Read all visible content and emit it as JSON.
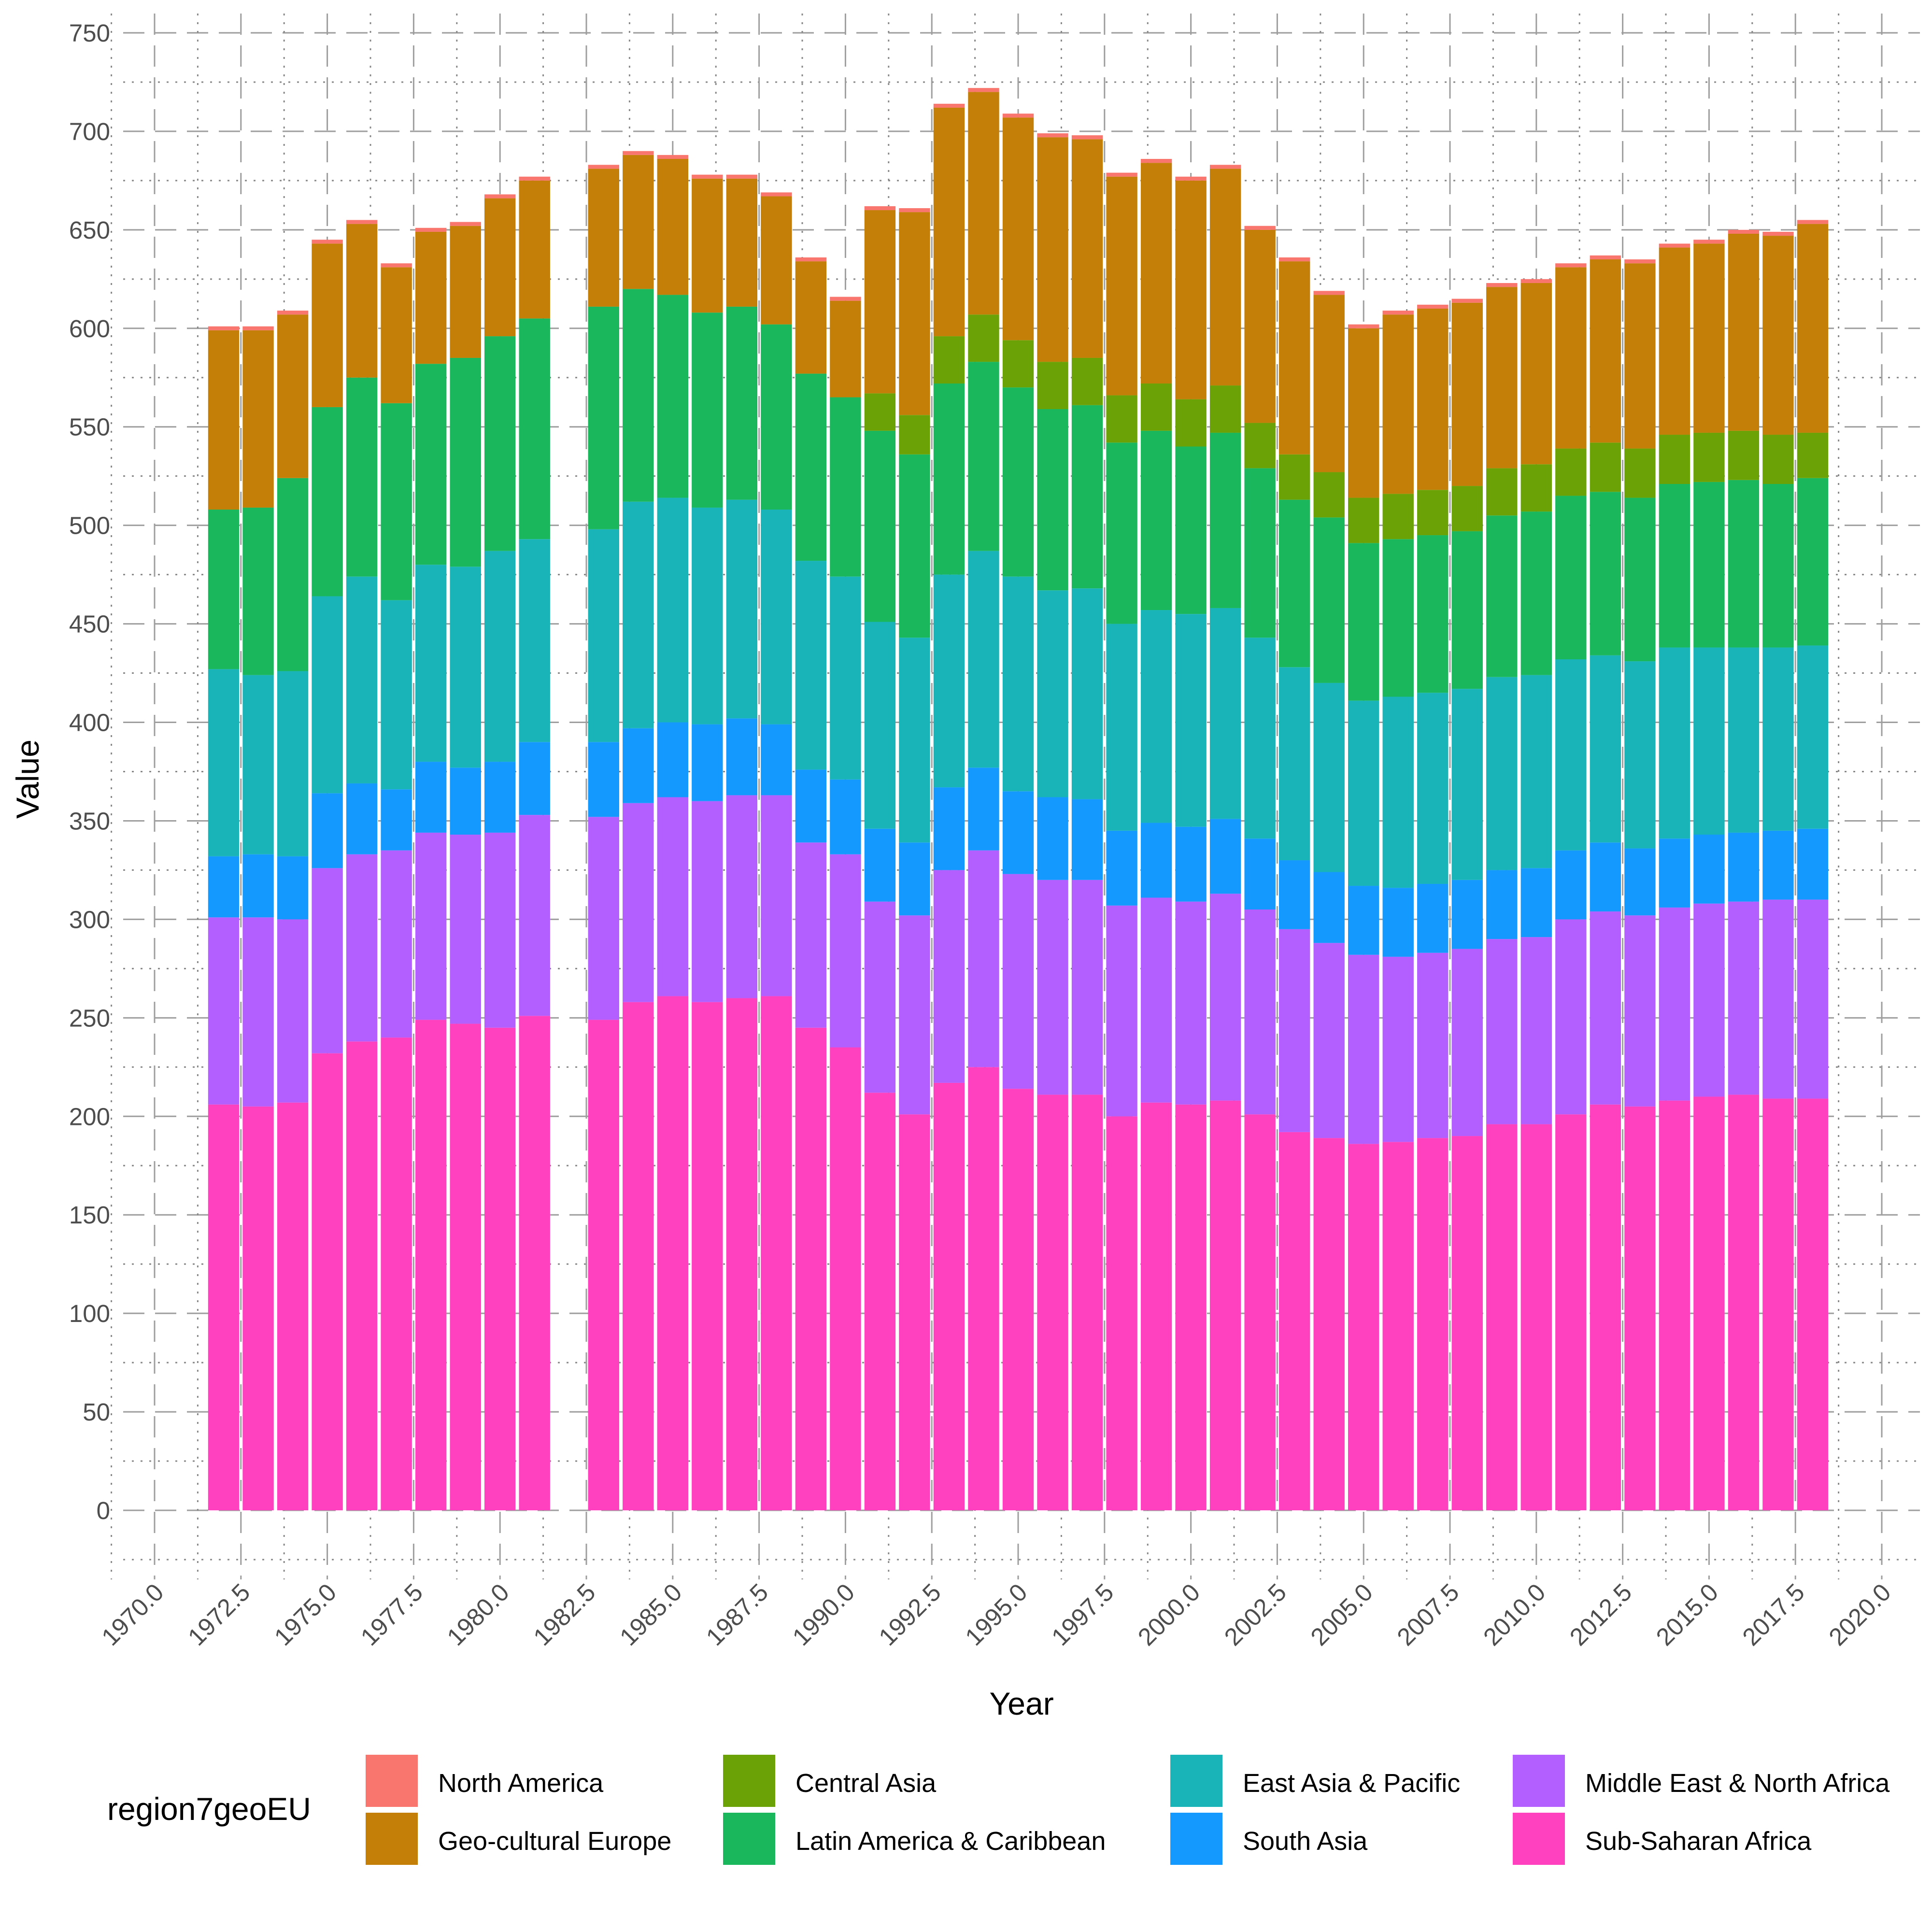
{
  "chart_data": {
    "type": "bar",
    "stacked": true,
    "xlabel": "Year",
    "ylabel": "Value",
    "xlim": [
      1970,
      2020
    ],
    "ylim": [
      0,
      750
    ],
    "x_ticks": [
      1970,
      1972.5,
      1975,
      1977.5,
      1980,
      1982.5,
      1985,
      1987.5,
      1990,
      1992.5,
      1995,
      1997.5,
      2000,
      2002.5,
      2005,
      2007.5,
      2010,
      2012.5,
      2015,
      2017.5,
      2020
    ],
    "x_tick_labels": [
      "1970.0",
      "1972.5",
      "1975.0",
      "1977.5",
      "1980.0",
      "1982.5",
      "1985.0",
      "1987.5",
      "1990.0",
      "1992.5",
      "1995.0",
      "1997.5",
      "2000.0",
      "2002.5",
      "2005.0",
      "2007.5",
      "2010.0",
      "2012.5",
      "2015.0",
      "2017.5",
      "2020.0"
    ],
    "y_ticks": [
      0,
      50,
      100,
      150,
      200,
      250,
      300,
      350,
      400,
      450,
      500,
      550,
      600,
      650,
      700,
      750
    ],
    "grid": "major dashed, minor dotted",
    "legend": {
      "title": "region7geoEU",
      "placement": "bottom"
    },
    "categories": [
      1972,
      1973,
      1974,
      1975,
      1976,
      1977,
      1978,
      1979,
      1980,
      1981,
      1983,
      1984,
      1985,
      1986,
      1987,
      1988,
      1989,
      1990,
      1991,
      1992,
      1993,
      1994,
      1995,
      1996,
      1997,
      1998,
      1999,
      2000,
      2001,
      2002,
      2003,
      2004,
      2005,
      2006,
      2007,
      2008,
      2009,
      2010,
      2011,
      2012,
      2013,
      2014,
      2015,
      2016,
      2017,
      2018
    ],
    "series": [
      {
        "name": "Sub-Saharan Africa",
        "color": "#FF40BF",
        "values": [
          206,
          205,
          207,
          232,
          238,
          240,
          249,
          247,
          245,
          251,
          249,
          258,
          261,
          258,
          260,
          261,
          245,
          235,
          212,
          201,
          217,
          225,
          214,
          211,
          211,
          200,
          207,
          206,
          208,
          201,
          192,
          189,
          186,
          187,
          189,
          190,
          196,
          196,
          201,
          206,
          205,
          208,
          210,
          211,
          209,
          209
        ]
      },
      {
        "name": "Middle East & North Africa",
        "color": "#B35FFF",
        "values": [
          95,
          96,
          93,
          94,
          95,
          95,
          95,
          96,
          99,
          102,
          103,
          101,
          101,
          102,
          103,
          102,
          94,
          98,
          97,
          101,
          108,
          110,
          109,
          109,
          109,
          107,
          104,
          103,
          105,
          104,
          103,
          99,
          96,
          94,
          94,
          95,
          94,
          95,
          99,
          98,
          97,
          98,
          98,
          98,
          101,
          101
        ]
      },
      {
        "name": "South Asia",
        "color": "#1499FF",
        "values": [
          31,
          32,
          32,
          38,
          36,
          31,
          36,
          34,
          36,
          37,
          38,
          38,
          38,
          39,
          39,
          36,
          37,
          38,
          37,
          37,
          42,
          42,
          42,
          42,
          41,
          38,
          38,
          38,
          38,
          36,
          35,
          36,
          35,
          35,
          35,
          35,
          35,
          35,
          35,
          35,
          34,
          35,
          35,
          35,
          35,
          36
        ]
      },
      {
        "name": "East Asia & Pacific",
        "color": "#19B4B7",
        "values": [
          95,
          91,
          94,
          100,
          105,
          96,
          100,
          102,
          107,
          103,
          108,
          115,
          114,
          110,
          111,
          109,
          106,
          103,
          105,
          104,
          108,
          110,
          109,
          105,
          107,
          105,
          108,
          108,
          107,
          102,
          98,
          96,
          94,
          97,
          97,
          97,
          98,
          98,
          97,
          95,
          95,
          97,
          95,
          94,
          93,
          93
        ]
      },
      {
        "name": "Latin America & Caribbean",
        "color": "#1BB75C",
        "values": [
          81,
          85,
          98,
          96,
          101,
          100,
          102,
          106,
          109,
          112,
          113,
          108,
          103,
          99,
          98,
          94,
          95,
          91,
          97,
          93,
          97,
          96,
          96,
          92,
          93,
          92,
          91,
          85,
          89,
          86,
          85,
          84,
          80,
          80,
          80,
          80,
          82,
          83,
          83,
          83,
          83,
          83,
          84,
          85,
          83,
          85
        ]
      },
      {
        "name": "Central Asia",
        "color": "#6BA206",
        "values": [
          0,
          0,
          0,
          0,
          0,
          0,
          0,
          0,
          0,
          0,
          0,
          0,
          0,
          0,
          0,
          0,
          0,
          0,
          19,
          20,
          24,
          24,
          24,
          24,
          24,
          24,
          24,
          24,
          24,
          23,
          23,
          23,
          23,
          23,
          23,
          23,
          24,
          24,
          24,
          25,
          25,
          25,
          25,
          25,
          25,
          23
        ]
      },
      {
        "name": "Geo-cultural Europe",
        "color": "#C37F07",
        "values": [
          91,
          90,
          83,
          83,
          78,
          69,
          67,
          67,
          70,
          70,
          70,
          68,
          69,
          68,
          65,
          65,
          57,
          49,
          93,
          103,
          116,
          113,
          113,
          114,
          111,
          111,
          112,
          111,
          110,
          98,
          98,
          90,
          86,
          91,
          92,
          93,
          92,
          92,
          92,
          93,
          94,
          95,
          96,
          100,
          101,
          106
        ]
      },
      {
        "name": "North America",
        "color": "#F8766D",
        "values": [
          2,
          2,
          2,
          2,
          2,
          2,
          2,
          2,
          2,
          2,
          2,
          2,
          2,
          2,
          2,
          2,
          2,
          2,
          2,
          2,
          2,
          2,
          2,
          2,
          2,
          2,
          2,
          2,
          2,
          2,
          2,
          2,
          2,
          2,
          2,
          2,
          2,
          2,
          2,
          2,
          2,
          2,
          2,
          2,
          2,
          2
        ]
      }
    ],
    "legend_order": [
      [
        "North America",
        "Geo-cultural Europe"
      ],
      [
        "Central Asia",
        "Latin America & Caribbean"
      ],
      [
        "East Asia & Pacific",
        "South Asia"
      ],
      [
        "Middle East & North Africa",
        "Sub-Saharan Africa"
      ]
    ]
  }
}
